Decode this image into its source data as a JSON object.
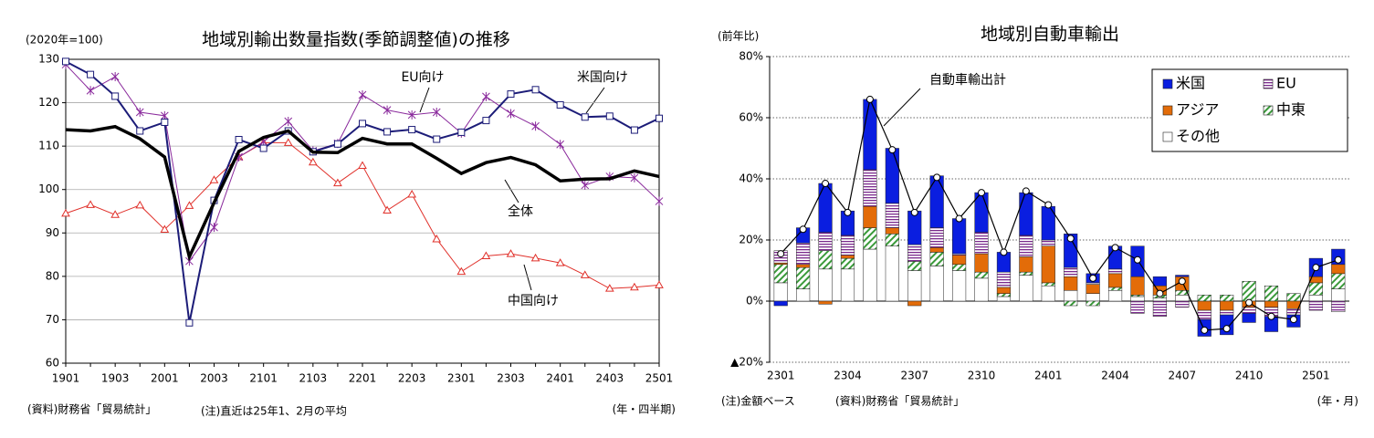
{
  "chart_data": [
    {
      "type": "line",
      "title": "地域別輸出数量指数(季節調整値)の推移",
      "y_label": "(2020年=100)",
      "x_label": "(年・四半期)",
      "source": "(資料)財務省「貿易統計」",
      "note": "(注)直近は25年1、2月の平均",
      "categories": [
        "1901",
        null,
        "1903",
        null,
        "2001",
        null,
        "2003",
        null,
        "2101",
        null,
        "2103",
        null,
        "2201",
        null,
        "2203",
        null,
        "2301",
        null,
        "2303",
        null,
        "2401",
        null,
        "2403",
        null,
        "2501"
      ],
      "ylim": [
        60,
        130
      ],
      "yticks": [
        60,
        70,
        80,
        90,
        100,
        110,
        120,
        130
      ],
      "grid": true,
      "series": [
        {
          "name": "全体",
          "color": "#000000",
          "marker": "none",
          "width": 3.5,
          "values": [
            113.8,
            113.5,
            114.5,
            111.7,
            107.5,
            84.5,
            97,
            108.8,
            112,
            113.5,
            108.6,
            108.5,
            111.8,
            110.5,
            110.5,
            107.2,
            103.7,
            106.2,
            107.4,
            105.7,
            102,
            102.4,
            102.5,
            104.3,
            103
          ]
        },
        {
          "name": "米国向け",
          "color": "#1c1c78",
          "marker": "square",
          "width": 2,
          "values": [
            129.5,
            126.5,
            121.5,
            113.5,
            115.5,
            69.3,
            97.5,
            111.5,
            109.5,
            113.5,
            108.7,
            110.5,
            115.2,
            113.3,
            113.8,
            111.6,
            113.2,
            115.9,
            122,
            123,
            119.5,
            116.7,
            116.9,
            113.7,
            116.4
          ]
        },
        {
          "name": "EU向け",
          "color": "#8a2a9c",
          "marker": "star",
          "width": 1,
          "values": [
            128.8,
            122.8,
            126,
            117.8,
            117,
            83.5,
            91.3,
            107.5,
            111,
            115.7,
            108.9,
            110.6,
            121.8,
            118.3,
            117.2,
            117.8,
            113,
            121.4,
            117.5,
            114.6,
            110.4,
            101,
            103,
            102.7,
            97.3
          ]
        },
        {
          "name": "中国向け",
          "color": "#e0302a",
          "marker": "triangle",
          "width": 1,
          "values": [
            94.5,
            96.5,
            94.2,
            96.4,
            90.8,
            96.3,
            102.2,
            107.5,
            110.8,
            110.8,
            106.3,
            101.5,
            105.5,
            95.2,
            98.9,
            88.6,
            81.1,
            84.7,
            85.2,
            84.2,
            83.1,
            80.3,
            77.2,
            77.5,
            78
          ]
        }
      ]
    },
    {
      "type": "stacked_bar",
      "title": "地域別自動車輸出",
      "y_label": "(前年比)",
      "x_label": "(年・月)",
      "note": "(注)金額ベース",
      "source": "(資料)財務省「貿易統計」",
      "categories": [
        "2301",
        null,
        null,
        "2304",
        null,
        null,
        "2307",
        null,
        null,
        "2310",
        null,
        null,
        "2401",
        null,
        null,
        "2404",
        null,
        null,
        "2407",
        null,
        null,
        "2410",
        null,
        null,
        "2501",
        null
      ],
      "ylim": [
        -20,
        80
      ],
      "yticks": [
        {
          "value": -20,
          "label": "▲20%"
        },
        {
          "value": 0,
          "label": "0%"
        },
        {
          "value": 20,
          "label": "20%"
        },
        {
          "value": 40,
          "label": "40%"
        },
        {
          "value": 60,
          "label": "60%"
        },
        {
          "value": 80,
          "label": "80%"
        }
      ],
      "grid": true,
      "series": [
        {
          "name": "その他",
          "color": "#ffffff",
          "pattern": "solid",
          "values": [
            6,
            4,
            10.5,
            10.5,
            17,
            18,
            10,
            11.5,
            10,
            7.5,
            1.5,
            8.5,
            5,
            3.5,
            2.5,
            3.5,
            1.5,
            1,
            2,
            0,
            0,
            0,
            0,
            0,
            2,
            4
          ]
        },
        {
          "name": "中東",
          "color": "#3a9a3a",
          "pattern": "diagonal",
          "values": [
            6,
            7,
            6,
            3.5,
            7,
            4,
            3,
            4.5,
            2,
            2,
            1,
            1,
            1,
            -1.5,
            -1.5,
            1,
            0.5,
            1,
            1.5,
            2,
            2,
            6.5,
            5,
            2.5,
            4,
            5
          ]
        },
        {
          "name": "アジア",
          "color": "#e36c09",
          "pattern": "solid",
          "values": [
            0.5,
            1,
            -1,
            1,
            7,
            2,
            -1.5,
            1.5,
            3,
            6,
            2,
            5,
            12,
            4.5,
            3,
            4.5,
            6,
            3,
            4.5,
            -3,
            -3,
            -2,
            -2,
            -2.5,
            2,
            3
          ]
        },
        {
          "name": "EU",
          "color": "#7a2a8c",
          "pattern": "hstripe",
          "values": [
            4,
            7,
            6,
            6.5,
            12,
            8,
            5.5,
            6.5,
            0.5,
            7,
            5,
            7,
            2,
            3,
            0.5,
            1.5,
            -4,
            -5,
            -2,
            -3,
            -1.5,
            -2,
            -3,
            -2,
            -3,
            -3.5
          ]
        },
        {
          "name": "米国",
          "color": "#0a1ee0",
          "pattern": "solid",
          "values": [
            -1.5,
            5,
            16,
            8,
            23,
            18,
            11,
            17,
            11.5,
            13,
            6.5,
            14,
            11,
            11,
            3,
            7.5,
            10,
            3,
            0.5,
            -5.5,
            -6.5,
            -3,
            -5,
            -4,
            6,
            5
          ]
        },
        {
          "name": "自動車輸出計",
          "color": "#000000",
          "type": "line",
          "values": [
            15.5,
            23.5,
            38.5,
            29,
            66,
            49.5,
            29,
            40.5,
            27,
            35.5,
            16,
            36,
            31.5,
            20.5,
            7.5,
            17.5,
            13.5,
            2.5,
            6.5,
            -9.5,
            -9,
            -0.5,
            -5,
            -6,
            11,
            13.5
          ]
        }
      ],
      "legend_order": [
        4,
        3,
        2,
        1,
        0
      ]
    }
  ]
}
